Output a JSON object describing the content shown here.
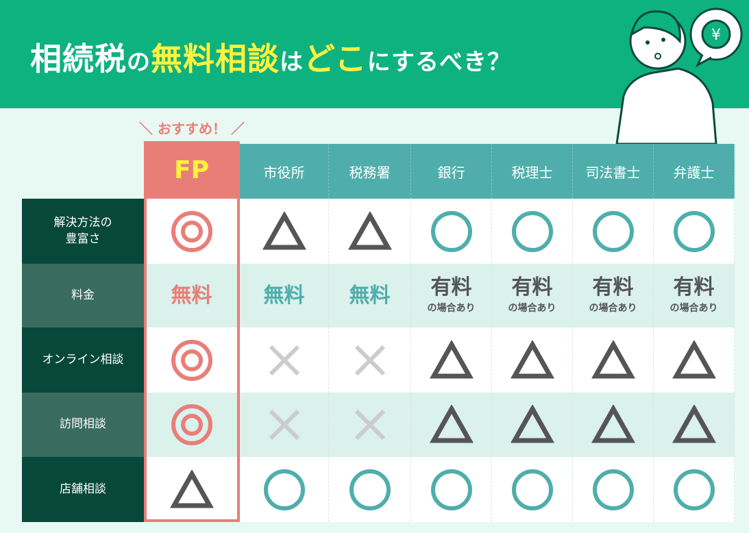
{
  "title": {
    "part1": "相続税",
    "part2": "の",
    "part3": "無料相談",
    "part4": "は",
    "part5": "どこ",
    "part6": "にするべき？"
  },
  "recommend_label": "＼ おすすめ！ ／",
  "columns": [
    "FP",
    "市役所",
    "税務署",
    "銀行",
    "税理士",
    "司法書士",
    "弁護士"
  ],
  "rows": [
    {
      "label": "解決方法の\n豊富さ",
      "values": [
        "double-circle",
        "triangle",
        "triangle",
        "circle",
        "circle",
        "circle",
        "circle"
      ]
    },
    {
      "label": "料金",
      "values": [
        {
          "text": "無料"
        },
        {
          "text": "無料"
        },
        {
          "text": "無料"
        },
        {
          "text": "有料",
          "sub": "の場合あり"
        },
        {
          "text": "有料",
          "sub": "の場合あり"
        },
        {
          "text": "有料",
          "sub": "の場合あり"
        },
        {
          "text": "有料",
          "sub": "の場合あり"
        }
      ]
    },
    {
      "label": "オンライン相談",
      "values": [
        "double-circle",
        "cross",
        "cross",
        "triangle",
        "triangle",
        "triangle",
        "triangle"
      ]
    },
    {
      "label": "訪問相談",
      "values": [
        "double-circle",
        "cross",
        "cross",
        "triangle",
        "triangle",
        "triangle",
        "triangle"
      ]
    },
    {
      "label": "店舗相談",
      "values": [
        "triangle",
        "circle",
        "circle",
        "circle",
        "circle",
        "circle",
        "circle"
      ]
    }
  ],
  "colors": {
    "banner": "#0db27f",
    "fp": "#e97e79",
    "teal": "#4faeab",
    "triangle": "#555555",
    "cross": "#cccccc",
    "highlight": "#fff23f"
  }
}
